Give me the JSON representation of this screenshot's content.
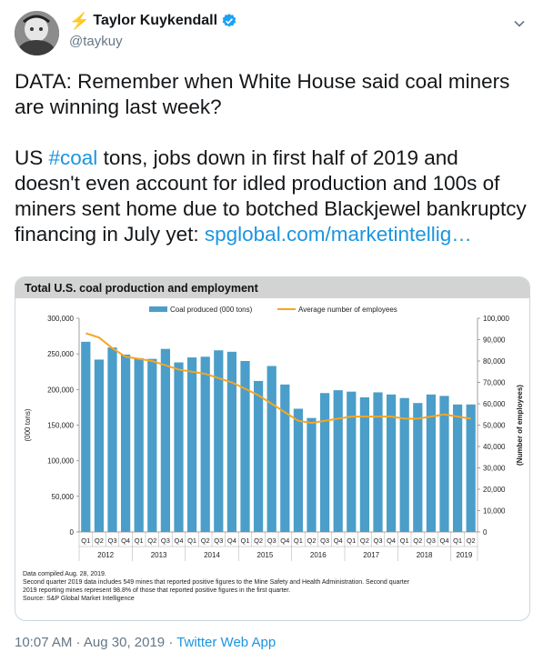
{
  "author": {
    "emoji": "⚡",
    "name": "Taylor Kuykendall",
    "handle": "@taykuy"
  },
  "tweet": {
    "line1": "DATA: Remember when White House said coal miners are winning last week?",
    "p2_prefix": "US ",
    "hashtag": "#coal",
    "p2_middle": " tons, jobs down in first half of 2019 and doesn't even account for idled production and 100s of miners sent home due to botched Blackjewel bankruptcy financing in July yet: ",
    "link": "spglobal.com/marketintellig…"
  },
  "footer": {
    "time": "10:07 AM",
    "sep1": " · ",
    "date": "Aug 30, 2019",
    "sep2": " · ",
    "app": "Twitter Web App"
  },
  "colors": {
    "bar": "#4a9ec9",
    "line": "#f5a623",
    "link": "#1b95e0",
    "verified": "#1da1f2"
  },
  "chart_data": {
    "type": "bar",
    "title": "Total U.S. coal production and employment",
    "legend": [
      "Coal produced (000 tons)",
      "Average number of employees"
    ],
    "legend_position": "top",
    "ylabel_left": "(000 tons)",
    "ylabel_right": "(Number of employees)",
    "ylim_left": [
      0,
      300000
    ],
    "ylim_right": [
      0,
      100000
    ],
    "yticks_left": [
      "300,000",
      "250,000",
      "200,000",
      "150,000",
      "100,000",
      "50,000",
      "0"
    ],
    "yticks_right": [
      "100,000",
      "90,000",
      "80,000",
      "70,000",
      "60,000",
      "50,000",
      "40,000",
      "30,000",
      "20,000",
      "10,000",
      "0"
    ],
    "categories": [
      "Q1",
      "Q2",
      "Q3",
      "Q4",
      "Q1",
      "Q2",
      "Q3",
      "Q4",
      "Q1",
      "Q2",
      "Q3",
      "Q4",
      "Q1",
      "Q2",
      "Q3",
      "Q4",
      "Q1",
      "Q2",
      "Q3",
      "Q4",
      "Q1",
      "Q2",
      "Q3",
      "Q4",
      "Q1",
      "Q2",
      "Q3",
      "Q4",
      "Q1",
      "Q2"
    ],
    "years": [
      {
        "label": "2012",
        "start": 0,
        "end": 3
      },
      {
        "label": "2013",
        "start": 4,
        "end": 7
      },
      {
        "label": "2014",
        "start": 8,
        "end": 11
      },
      {
        "label": "2015",
        "start": 12,
        "end": 15
      },
      {
        "label": "2016",
        "start": 16,
        "end": 19
      },
      {
        "label": "2017",
        "start": 20,
        "end": 23
      },
      {
        "label": "2018",
        "start": 24,
        "end": 27
      },
      {
        "label": "2019",
        "start": 28,
        "end": 29
      }
    ],
    "series": [
      {
        "name": "Coal produced (000 tons)",
        "axis": "left",
        "values": [
          267000,
          242000,
          259000,
          249000,
          244000,
          243000,
          257000,
          238000,
          245000,
          246000,
          255000,
          253000,
          240000,
          212000,
          233000,
          207000,
          173000,
          160000,
          195000,
          199000,
          197000,
          189000,
          196000,
          193000,
          188000,
          181000,
          193000,
          191000,
          179000,
          179000
        ]
      },
      {
        "name": "Average number of employees",
        "axis": "right",
        "values": [
          93000,
          91000,
          86000,
          82000,
          81000,
          80000,
          78000,
          76000,
          75000,
          74000,
          72000,
          70000,
          67000,
          64000,
          60000,
          56000,
          52000,
          51000,
          52000,
          53000,
          54000,
          54000,
          54000,
          54000,
          53000,
          53000,
          54000,
          55000,
          54000,
          53000
        ]
      }
    ],
    "notes": [
      "Data compiled Aug. 28, 2019.",
      "Second quarter 2019 data includes 549 mines that reported positive figures to the Mine Safety and Health Administration. Second quarter",
      "2019 reporting mines represent 98.8% of those that reported positive figures in the first quarter.",
      "Source: S&P Global Market Intelligence"
    ]
  }
}
